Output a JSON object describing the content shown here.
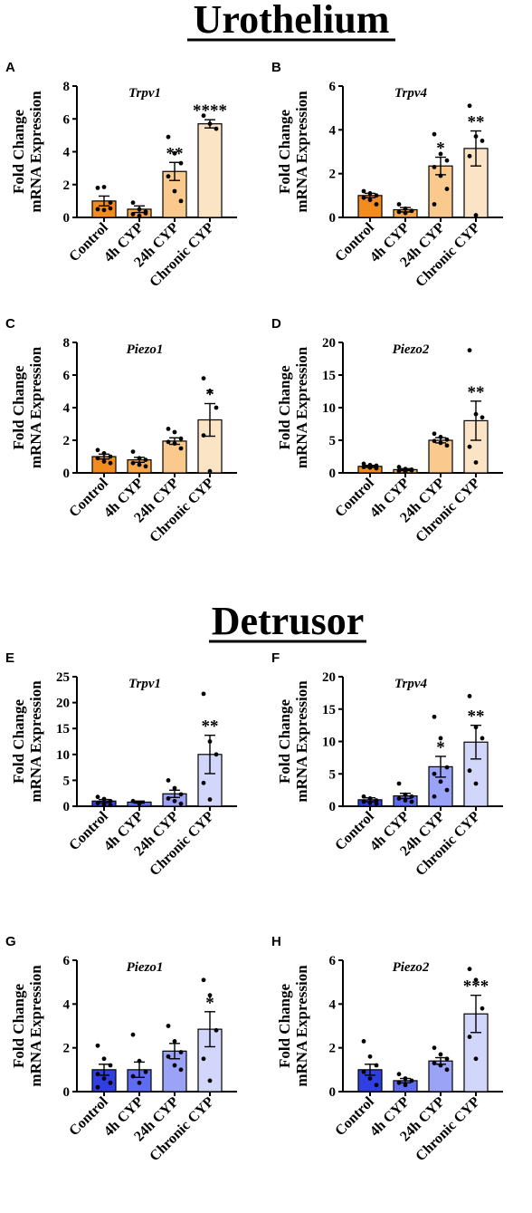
{
  "sections": [
    {
      "title": "Urothelium"
    },
    {
      "title": "Detrusor"
    }
  ],
  "colors": {
    "urothelium": [
      "#f28c1e",
      "#f6a84a",
      "#f9c98d",
      "#fbe3c6"
    ],
    "detrusor": [
      "#2f3fe0",
      "#5f6cf0",
      "#9aa3f6",
      "#d2d6fb"
    ]
  },
  "chart_data": [
    {
      "type": "bar",
      "panel": "A",
      "title": "Trpv1",
      "section": "Urothelium",
      "ylabel": [
        "Fold Change",
        "mRNA Expression"
      ],
      "categories": [
        "Control",
        "4h CYP",
        "24h CYP",
        "Chronic CYP"
      ],
      "values": [
        1.0,
        0.5,
        2.8,
        5.7
      ],
      "sem": [
        0.3,
        0.2,
        0.55,
        0.25
      ],
      "points": [
        [
          1.8,
          1.85,
          0.9,
          0.5,
          0.45,
          0.55
        ],
        [
          0.9,
          0.5,
          0.35,
          0.2,
          0.1,
          0.25
        ],
        [
          4.9,
          3.9,
          3.3,
          2.5,
          1.6,
          1.0
        ],
        [
          6.2,
          5.7,
          5.4
        ]
      ],
      "significance": [
        "",
        "",
        "**",
        "****"
      ],
      "ylim": [
        0,
        8
      ],
      "yticks": [
        0,
        2,
        4,
        6,
        8
      ]
    },
    {
      "type": "bar",
      "panel": "B",
      "title": "Trpv4",
      "section": "Urothelium",
      "ylabel": [
        "Fold Change",
        "mRNA Expression"
      ],
      "categories": [
        "Control",
        "4h CYP",
        "24h CYP",
        "Chronic CYP"
      ],
      "values": [
        1.0,
        0.35,
        2.35,
        3.15
      ],
      "sem": [
        0.1,
        0.1,
        0.4,
        0.8
      ],
      "points": [
        [
          1.2,
          1.1,
          1.0,
          0.9,
          0.8,
          0.6
        ],
        [
          0.6,
          0.4,
          0.3,
          0.25,
          0.2,
          0.3
        ],
        [
          3.8,
          2.9,
          2.6,
          2.3,
          1.9,
          1.3,
          0.6
        ],
        [
          5.1,
          3.7,
          3.5,
          2.8,
          0.1
        ]
      ],
      "significance": [
        "",
        "",
        "*",
        "**"
      ],
      "ylim": [
        0,
        6
      ],
      "yticks": [
        0,
        2,
        4,
        6
      ]
    },
    {
      "type": "bar",
      "panel": "C",
      "title": "Piezo1",
      "section": "Urothelium",
      "ylabel": [
        "Fold Change",
        "mRNA Expression"
      ],
      "categories": [
        "Control",
        "4h CYP",
        "24h CYP",
        "Chronic CYP"
      ],
      "values": [
        1.0,
        0.8,
        1.95,
        3.25
      ],
      "sem": [
        0.15,
        0.15,
        0.2,
        1.0
      ],
      "points": [
        [
          1.4,
          1.2,
          1.0,
          0.9,
          0.7,
          0.6
        ],
        [
          1.3,
          0.9,
          0.8,
          0.6,
          0.5,
          0.4
        ],
        [
          2.7,
          2.5,
          2.1,
          1.9,
          1.8,
          1.5
        ],
        [
          5.8,
          5.0,
          4.0,
          2.3,
          0.1
        ]
      ],
      "significance": [
        "",
        "",
        "",
        "*"
      ],
      "ylim": [
        0,
        8
      ],
      "yticks": [
        0,
        2,
        4,
        6,
        8
      ]
    },
    {
      "type": "bar",
      "panel": "D",
      "title": "Piezo2",
      "section": "Urothelium",
      "ylabel": [
        "Fold Change",
        "mRNA Expression"
      ],
      "categories": [
        "Control",
        "4h CYP",
        "24h CYP",
        "Chronic CYP"
      ],
      "values": [
        1.0,
        0.5,
        5.0,
        8.0
      ],
      "sem": [
        0.15,
        0.15,
        0.4,
        3.0
      ],
      "points": [
        [
          1.4,
          1.2,
          1.1,
          0.9,
          0.8,
          0.7
        ],
        [
          0.9,
          0.6,
          0.5,
          0.3,
          0.2,
          0.4
        ],
        [
          6.0,
          5.5,
          5.1,
          4.9,
          4.6,
          4.2
        ],
        [
          18.8,
          9.0,
          8.5,
          4.0,
          1.6
        ]
      ],
      "significance": [
        "",
        "",
        "",
        "**"
      ],
      "ylim": [
        0,
        20
      ],
      "yticks": [
        0,
        5,
        10,
        15,
        20
      ]
    },
    {
      "type": "bar",
      "panel": "E",
      "title": "Trpv1",
      "section": "Detrusor",
      "ylabel": [
        "Fold Change",
        "mRNA Expression"
      ],
      "categories": [
        "Control",
        "4h CYP",
        "24h CYP",
        "Chronic CYP"
      ],
      "values": [
        1.0,
        0.8,
        2.4,
        10.0
      ],
      "sem": [
        0.3,
        0.2,
        0.7,
        3.7
      ],
      "points": [
        [
          1.8,
          1.4,
          1.0,
          0.6,
          0.3,
          0.2
        ],
        [
          1.0,
          0.5
        ],
        [
          5.0,
          3.5,
          2.3,
          1.5,
          1.0,
          0.5
        ],
        [
          21.7,
          12.5,
          10.0,
          4.5,
          1.3
        ]
      ],
      "significance": [
        "",
        "",
        "",
        "**"
      ],
      "ylim": [
        0,
        25
      ],
      "yticks": [
        0,
        5,
        10,
        15,
        20,
        25
      ]
    },
    {
      "type": "bar",
      "panel": "F",
      "title": "Trpv4",
      "section": "Detrusor",
      "ylabel": [
        "Fold Change",
        "mRNA Expression"
      ],
      "categories": [
        "Control",
        "4h CYP",
        "24h CYP",
        "Chronic CYP"
      ],
      "values": [
        1.0,
        1.6,
        6.1,
        9.9
      ],
      "sem": [
        0.3,
        0.4,
        1.6,
        2.6
      ],
      "points": [
        [
          1.5,
          1.2,
          0.9,
          0.7,
          0.5,
          0.4
        ],
        [
          3.5,
          1.8,
          1.5,
          1.2,
          0.9,
          0.7
        ],
        [
          13.8,
          10.5,
          6.0,
          5.0,
          3.8,
          2.5,
          1.5
        ],
        [
          17.0,
          12.2,
          10.5,
          5.5,
          3.5
        ]
      ],
      "significance": [
        "",
        "",
        "*",
        "**"
      ],
      "ylim": [
        0,
        20
      ],
      "yticks": [
        0,
        5,
        10,
        15,
        20
      ]
    },
    {
      "type": "bar",
      "panel": "G",
      "title": "Piezo1",
      "section": "Detrusor",
      "ylabel": [
        "Fold Change",
        "mRNA Expression"
      ],
      "categories": [
        "Control",
        "4h CYP",
        "24h CYP",
        "Chronic CYP"
      ],
      "values": [
        1.0,
        1.0,
        1.85,
        2.85
      ],
      "sem": [
        0.25,
        0.35,
        0.35,
        0.8
      ],
      "points": [
        [
          2.1,
          1.5,
          1.2,
          0.8,
          0.6,
          0.4,
          0.2
        ],
        [
          2.6,
          1.4,
          0.9,
          0.7,
          0.4
        ],
        [
          3.0,
          2.3,
          1.8,
          1.6,
          1.2,
          1.0
        ],
        [
          5.1,
          4.4,
          2.8,
          1.5,
          0.5
        ]
      ],
      "significance": [
        "",
        "",
        "",
        "*"
      ],
      "ylim": [
        0,
        6
      ],
      "yticks": [
        0,
        2,
        4,
        6
      ]
    },
    {
      "type": "bar",
      "panel": "H",
      "title": "Piezo2",
      "section": "Detrusor",
      "ylabel": [
        "Fold Change",
        "mRNA Expression"
      ],
      "categories": [
        "Control",
        "4h CYP",
        "24h CYP",
        "Chronic CYP"
      ],
      "values": [
        1.0,
        0.5,
        1.4,
        3.55
      ],
      "sem": [
        0.25,
        0.1,
        0.15,
        0.85
      ],
      "points": [
        [
          2.3,
          1.6,
          1.2,
          0.9,
          0.6,
          0.3
        ],
        [
          0.8,
          0.6,
          0.5,
          0.4,
          0.3
        ],
        [
          2.0,
          1.7,
          1.5,
          1.3,
          1.2,
          1.0
        ],
        [
          5.6,
          5.1,
          3.8,
          2.5,
          1.5
        ]
      ],
      "significance": [
        "",
        "",
        "",
        "***"
      ],
      "ylim": [
        0,
        6
      ],
      "yticks": [
        0,
        2,
        4,
        6
      ]
    }
  ]
}
